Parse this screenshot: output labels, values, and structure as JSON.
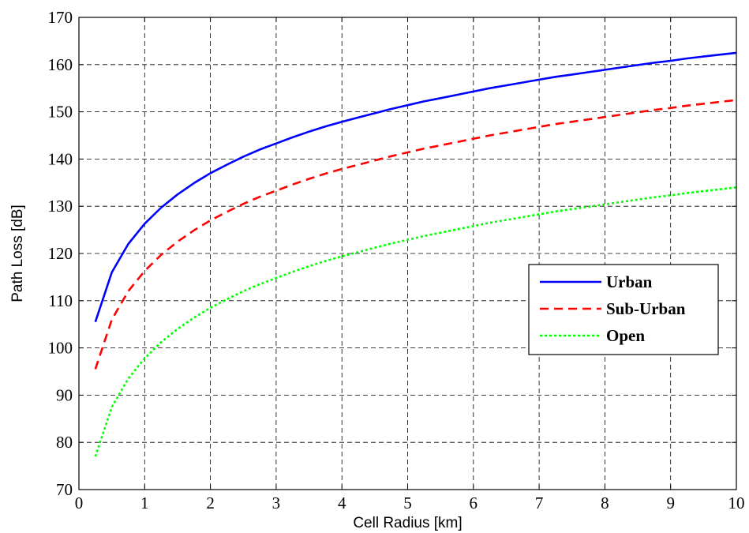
{
  "chart_data": {
    "type": "line",
    "title": "",
    "xlabel": "Cell Radius [km]",
    "ylabel": "Path Loss [dB]",
    "xlim": [
      0,
      10
    ],
    "ylim": [
      70,
      170
    ],
    "xticks": [
      0,
      1,
      2,
      3,
      4,
      5,
      6,
      7,
      8,
      9,
      10
    ],
    "yticks": [
      70,
      80,
      90,
      100,
      110,
      120,
      130,
      140,
      150,
      160,
      170
    ],
    "grid": true,
    "legend_position": "right",
    "x": [
      0.25,
      0.5,
      0.75,
      1,
      1.25,
      1.5,
      1.75,
      2,
      2.25,
      2.5,
      2.75,
      3,
      3.25,
      3.5,
      3.75,
      4,
      4.25,
      4.5,
      4.75,
      5,
      5.25,
      5.5,
      5.75,
      6,
      6.25,
      6.5,
      6.75,
      7,
      7.25,
      7.5,
      7.75,
      8,
      8.25,
      8.5,
      8.75,
      9,
      9.25,
      9.5,
      9.75,
      10
    ],
    "series": [
      {
        "name": "Urban",
        "color": "#0000ff",
        "style": "solid",
        "values": [
          105.5,
          116.0,
          122.0,
          126.3,
          129.7,
          132.5,
          134.9,
          137.0,
          138.8,
          140.5,
          142.0,
          143.3,
          144.6,
          145.8,
          146.9,
          147.9,
          148.8,
          149.7,
          150.6,
          151.4,
          152.2,
          152.9,
          153.6,
          154.3,
          155.0,
          155.6,
          156.2,
          156.8,
          157.4,
          157.9,
          158.4,
          158.9,
          159.4,
          159.9,
          160.4,
          160.8,
          161.3,
          161.7,
          162.1,
          162.5
        ]
      },
      {
        "name": "Sub-Urban",
        "color": "#ff0000",
        "style": "dashed",
        "values": [
          95.5,
          106.0,
          112.0,
          116.3,
          119.7,
          122.5,
          124.9,
          127.0,
          128.8,
          130.5,
          132.0,
          133.3,
          134.6,
          135.8,
          136.9,
          137.9,
          138.8,
          139.7,
          140.6,
          141.4,
          142.2,
          142.9,
          143.6,
          144.3,
          145.0,
          145.6,
          146.2,
          146.8,
          147.4,
          147.9,
          148.4,
          148.9,
          149.4,
          149.9,
          150.4,
          150.8,
          151.3,
          151.7,
          152.1,
          152.5
        ]
      },
      {
        "name": "Open",
        "color": "#00ff00",
        "style": "dotted",
        "values": [
          77.0,
          87.5,
          93.5,
          97.8,
          101.2,
          104.0,
          106.4,
          108.5,
          110.3,
          112.0,
          113.5,
          114.8,
          116.1,
          117.3,
          118.4,
          119.4,
          120.3,
          121.2,
          122.1,
          122.9,
          123.7,
          124.4,
          125.1,
          125.8,
          126.5,
          127.1,
          127.7,
          128.3,
          128.9,
          129.4,
          129.9,
          130.4,
          130.9,
          131.4,
          131.9,
          132.3,
          132.8,
          133.2,
          133.6,
          134.0
        ]
      }
    ]
  }
}
